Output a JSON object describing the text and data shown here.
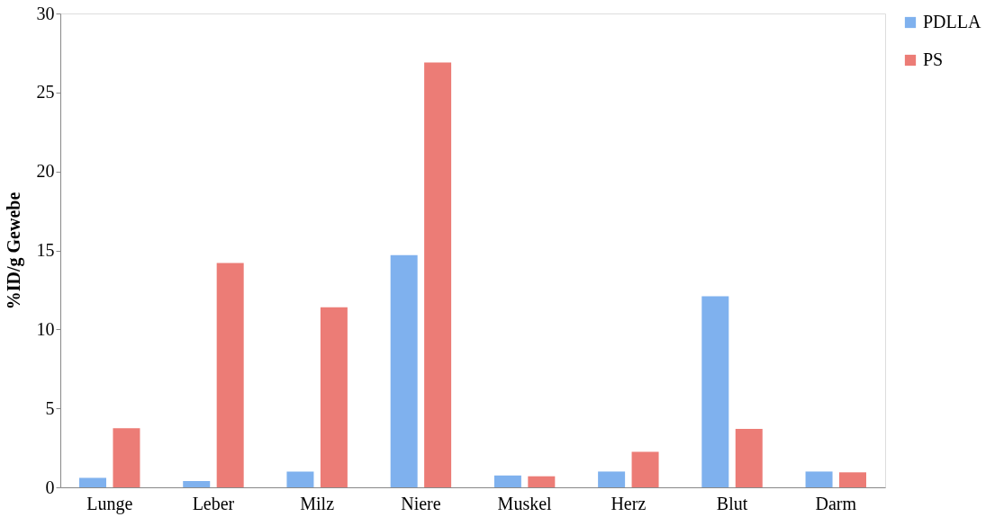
{
  "chart_data": {
    "type": "bar",
    "ylabel": "%ID/g Gewebe",
    "categories": [
      "Lunge",
      "Leber",
      "Milz",
      "Niere",
      "Muskel",
      "Herz",
      "Blut",
      "Darm"
    ],
    "series": [
      {
        "name": "PDLLA",
        "color": "#7fb1ee",
        "values": [
          0.6,
          0.4,
          1.0,
          14.7,
          0.75,
          1.0,
          12.1,
          1.0
        ]
      },
      {
        "name": "PS",
        "color": "#ec7c76",
        "values": [
          3.75,
          14.2,
          11.4,
          26.9,
          0.7,
          2.25,
          3.7,
          0.95
        ]
      }
    ],
    "ylim": [
      0,
      30
    ],
    "yticks": [
      0,
      5,
      10,
      15,
      20,
      25,
      30
    ],
    "grid": false,
    "legend": "right"
  }
}
